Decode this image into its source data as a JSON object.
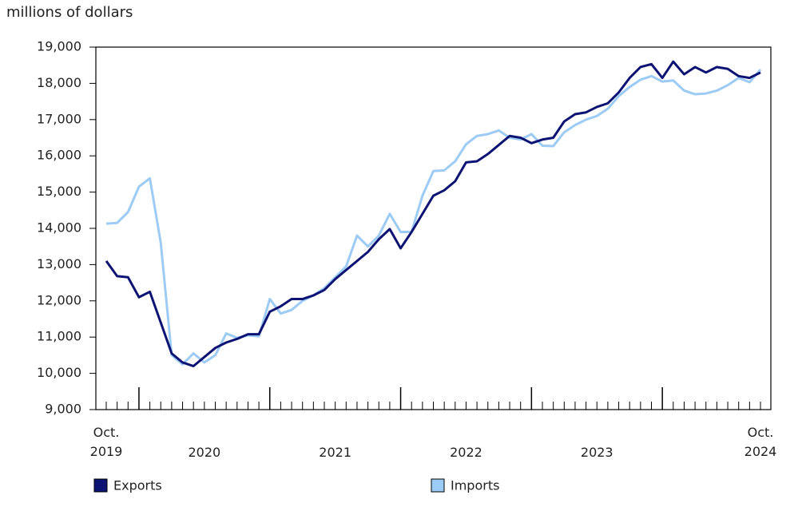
{
  "chart_data": {
    "type": "line",
    "y_label": "millions of dollars",
    "categories": [
      "Oct.\n2019",
      null,
      null,
      null,
      null,
      null,
      null,
      null,
      null,
      "2020",
      null,
      null,
      null,
      null,
      null,
      null,
      null,
      null,
      null,
      null,
      null,
      "2021",
      null,
      null,
      null,
      null,
      null,
      null,
      null,
      null,
      null,
      null,
      null,
      "2022",
      null,
      null,
      null,
      null,
      null,
      null,
      null,
      null,
      null,
      null,
      null,
      "2023",
      null,
      null,
      null,
      null,
      null,
      null,
      null,
      null,
      null,
      null,
      null,
      null,
      null,
      null,
      "Oct.\n2024"
    ],
    "series": [
      {
        "name": "Exports",
        "color": "#0c1373",
        "values": [
          13100,
          12680,
          12650,
          12100,
          12250,
          11400,
          10550,
          10300,
          10200,
          10450,
          10700,
          10850,
          10950,
          11080,
          11080,
          11700,
          11850,
          12050,
          12050,
          12150,
          12300,
          12600,
          12850,
          13100,
          13350,
          13700,
          13980,
          13450,
          13900,
          14400,
          14900,
          15050,
          15300,
          15820,
          15850,
          16050,
          16300,
          16550,
          16500,
          16350,
          16450,
          16500,
          16950,
          17150,
          17200,
          17350,
          17450,
          17750,
          18150,
          18450,
          18530,
          18150,
          18600,
          18250,
          18450,
          18300,
          18450,
          18400,
          18200,
          18150,
          18300
        ]
      },
      {
        "name": "Imports",
        "color": "#9ccbf5",
        "values": [
          14130,
          14150,
          14450,
          15150,
          15380,
          13600,
          10500,
          10250,
          10550,
          10300,
          10500,
          11100,
          10980,
          11050,
          11020,
          12050,
          11650,
          11750,
          12000,
          12150,
          12350,
          12650,
          12950,
          13800,
          13500,
          13800,
          14400,
          13900,
          13900,
          14900,
          15580,
          15600,
          15850,
          16320,
          16550,
          16600,
          16700,
          16500,
          16450,
          16600,
          16280,
          16270,
          16650,
          16850,
          17000,
          17100,
          17300,
          17650,
          17900,
          18100,
          18200,
          18050,
          18080,
          17800,
          17700,
          17720,
          17800,
          17950,
          18150,
          18030,
          18380
        ]
      }
    ],
    "ylim": [
      9000,
      19000
    ],
    "yticks": [
      {
        "value": 9000,
        "label": "9,000"
      },
      {
        "value": 10000,
        "label": "10,000"
      },
      {
        "value": 11000,
        "label": "11,000"
      },
      {
        "value": 12000,
        "label": "12,000"
      },
      {
        "value": 13000,
        "label": "13,000"
      },
      {
        "value": 14000,
        "label": "14,000"
      },
      {
        "value": 15000,
        "label": "15,000"
      },
      {
        "value": 16000,
        "label": "16,000"
      },
      {
        "value": 17000,
        "label": "17,000"
      },
      {
        "value": 18000,
        "label": "18,000"
      },
      {
        "value": 19000,
        "label": "19,000"
      }
    ],
    "legend": "bottom"
  }
}
